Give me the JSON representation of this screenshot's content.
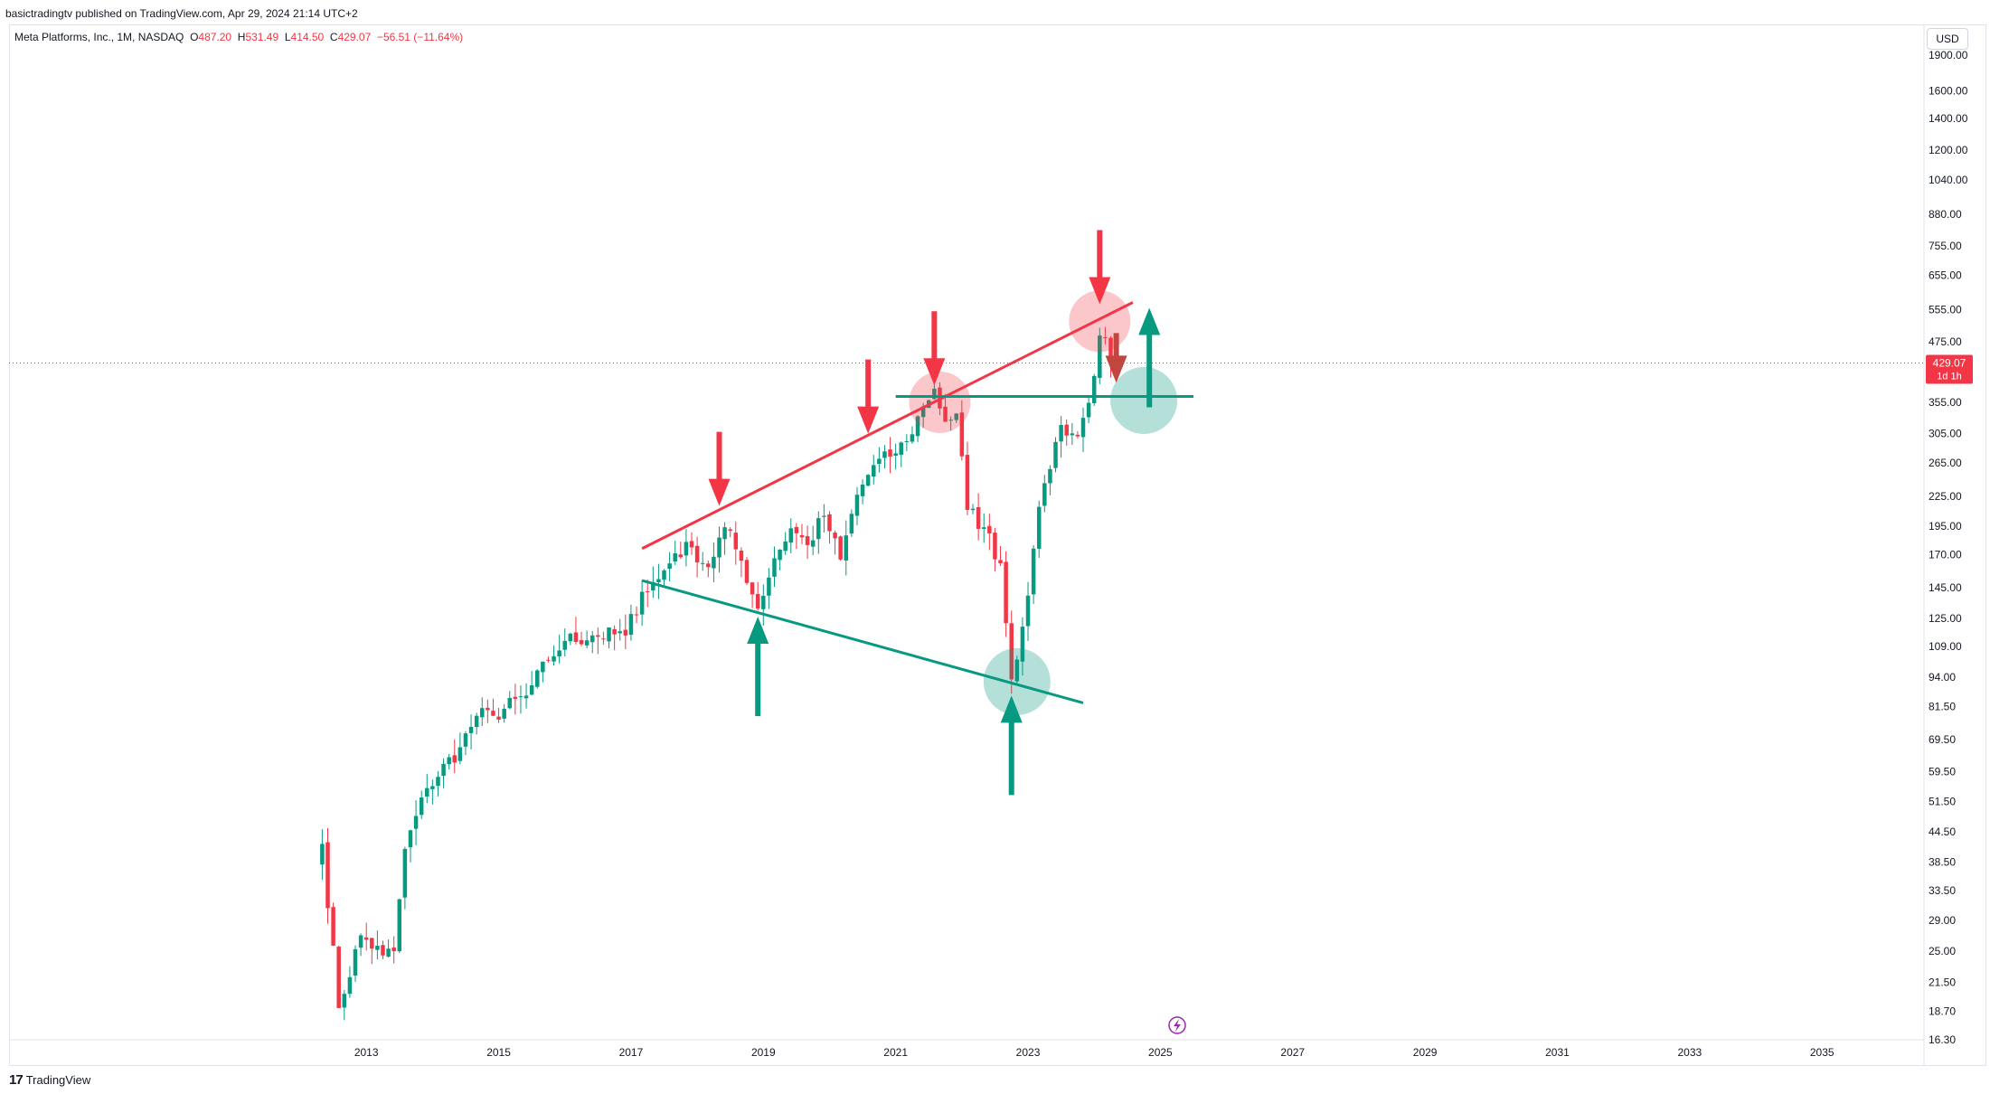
{
  "header": {
    "publisher_line": "basictradingtv published on TradingView.com, Apr 29, 2024 21:14 UTC+2",
    "symbol": "Meta Platforms, Inc., 1M, NASDAQ",
    "open_label": "O",
    "open": "487.20",
    "high_label": "H",
    "high": "531.49",
    "low_label": "L",
    "low": "414.50",
    "close_label": "C",
    "close": "429.07",
    "change": "−56.51 (−11.64%)"
  },
  "toolbar": {
    "currency": "USD"
  },
  "price_tag": {
    "price": "429.07",
    "countdown": "1d 1h"
  },
  "footer": {
    "brand": "TradingView",
    "logo": "17"
  },
  "colors": {
    "up": "#089981",
    "down": "#f23645",
    "accent": "#f23645",
    "green": "#089981"
  },
  "chart_data": {
    "type": "candlestick",
    "scale": "log",
    "y_ticks": [
      "1900.00",
      "1600.00",
      "1400.00",
      "1200.00",
      "1040.00",
      "880.00",
      "755.00",
      "655.00",
      "555.00",
      "475.00",
      "355.00",
      "305.00",
      "265.00",
      "225.00",
      "195.00",
      "170.00",
      "145.00",
      "125.00",
      "109.00",
      "94.00",
      "81.50",
      "69.50",
      "59.50",
      "51.50",
      "44.50",
      "38.50",
      "33.50",
      "29.00",
      "25.00",
      "21.50",
      "18.70",
      "16.30"
    ],
    "y_tick_values": [
      1900,
      1600,
      1400,
      1200,
      1040,
      880,
      755,
      655,
      555,
      475,
      355,
      305,
      265,
      225,
      195,
      170,
      145,
      125,
      109,
      94,
      81.5,
      69.5,
      59.5,
      51.5,
      44.5,
      38.5,
      33.5,
      29,
      25,
      21.5,
      18.7,
      16.3
    ],
    "x_ticks": [
      "2013",
      "2015",
      "2017",
      "2019",
      "2021",
      "2023",
      "2025",
      "2027",
      "2029",
      "2031",
      "2033",
      "2035"
    ],
    "x_tick_years": [
      2013,
      2015,
      2017,
      2019,
      2021,
      2023,
      2025,
      2027,
      2029,
      2031,
      2033,
      2035
    ],
    "ylim": [
      16.3,
      1950
    ],
    "xlim": [
      2007.6,
      2036.5
    ],
    "last_price": 429.07,
    "anchors": [
      [
        "2012-05",
        42
      ],
      [
        "2012-08",
        19
      ],
      [
        "2012-12",
        27
      ],
      [
        "2013-04",
        24.5
      ],
      [
        "2013-06",
        25
      ],
      [
        "2013-08",
        41
      ],
      [
        "2013-12",
        55
      ],
      [
        "2014-06",
        67
      ],
      [
        "2014-09",
        78
      ],
      [
        "2014-12",
        78
      ],
      [
        "2015-06",
        86
      ],
      [
        "2015-10",
        102
      ],
      [
        "2016-01",
        112
      ],
      [
        "2016-06",
        115
      ],
      [
        "2016-12",
        115
      ],
      [
        "2017-03",
        142
      ],
      [
        "2017-06",
        151
      ],
      [
        "2017-09",
        171
      ],
      [
        "2017-12",
        176
      ],
      [
        "2018-03",
        160
      ],
      [
        "2018-06",
        194
      ],
      [
        "2018-09",
        165
      ],
      [
        "2018-12",
        131
      ],
      [
        "2019-03",
        167
      ],
      [
        "2019-06",
        193
      ],
      [
        "2019-09",
        178
      ],
      [
        "2019-12",
        205
      ],
      [
        "2020-03",
        166
      ],
      [
        "2020-06",
        227
      ],
      [
        "2020-09",
        262
      ],
      [
        "2020-12",
        273
      ],
      [
        "2021-03",
        294
      ],
      [
        "2021-06",
        348
      ],
      [
        "2021-08",
        379
      ],
      [
        "2021-10",
        323
      ],
      [
        "2021-12",
        336
      ],
      [
        "2022-02",
        211
      ],
      [
        "2022-05",
        194
      ],
      [
        "2022-08",
        163
      ],
      [
        "2022-10",
        93
      ],
      [
        "2022-12",
        120
      ],
      [
        "2023-02",
        175
      ],
      [
        "2023-04",
        240
      ],
      [
        "2023-07",
        318
      ],
      [
        "2023-10",
        301
      ],
      [
        "2023-12",
        354
      ],
      [
        "2024-02",
        490
      ],
      [
        "2024-03",
        485
      ],
      [
        "2024-04",
        429.07
      ]
    ],
    "annotations": {
      "resistance_line": [
        [
          "2017-03",
          175
        ],
        [
          "2024-08",
          575
        ]
      ],
      "support_line": [
        [
          "2017-03",
          150
        ],
        [
          "2023-11",
          83
        ]
      ],
      "horizontal_level": {
        "from": "2021-01",
        "to": "2025-07",
        "value": 365
      },
      "red_circles": [
        {
          "date": "2021-09",
          "value": 355
        },
        {
          "date": "2024-02",
          "value": 525
        }
      ],
      "green_circles": [
        {
          "date": "2022-11",
          "value": 92
        },
        {
          "date": "2024-10",
          "value": 358
        }
      ],
      "down_arrows": [
        {
          "date": "2018-05",
          "tip": 215
        },
        {
          "date": "2020-08",
          "tip": 305
        },
        {
          "date": "2021-08",
          "tip": 385
        },
        {
          "date": "2024-02",
          "tip": 570
        }
      ],
      "up_arrows": [
        {
          "date": "2018-12",
          "tip": 126
        },
        {
          "date": "2022-10",
          "tip": 86
        },
        {
          "date": "2024-11",
          "tip": 560
        }
      ],
      "small_down_arrow": {
        "date": "2024-05",
        "tip": 390
      }
    }
  }
}
